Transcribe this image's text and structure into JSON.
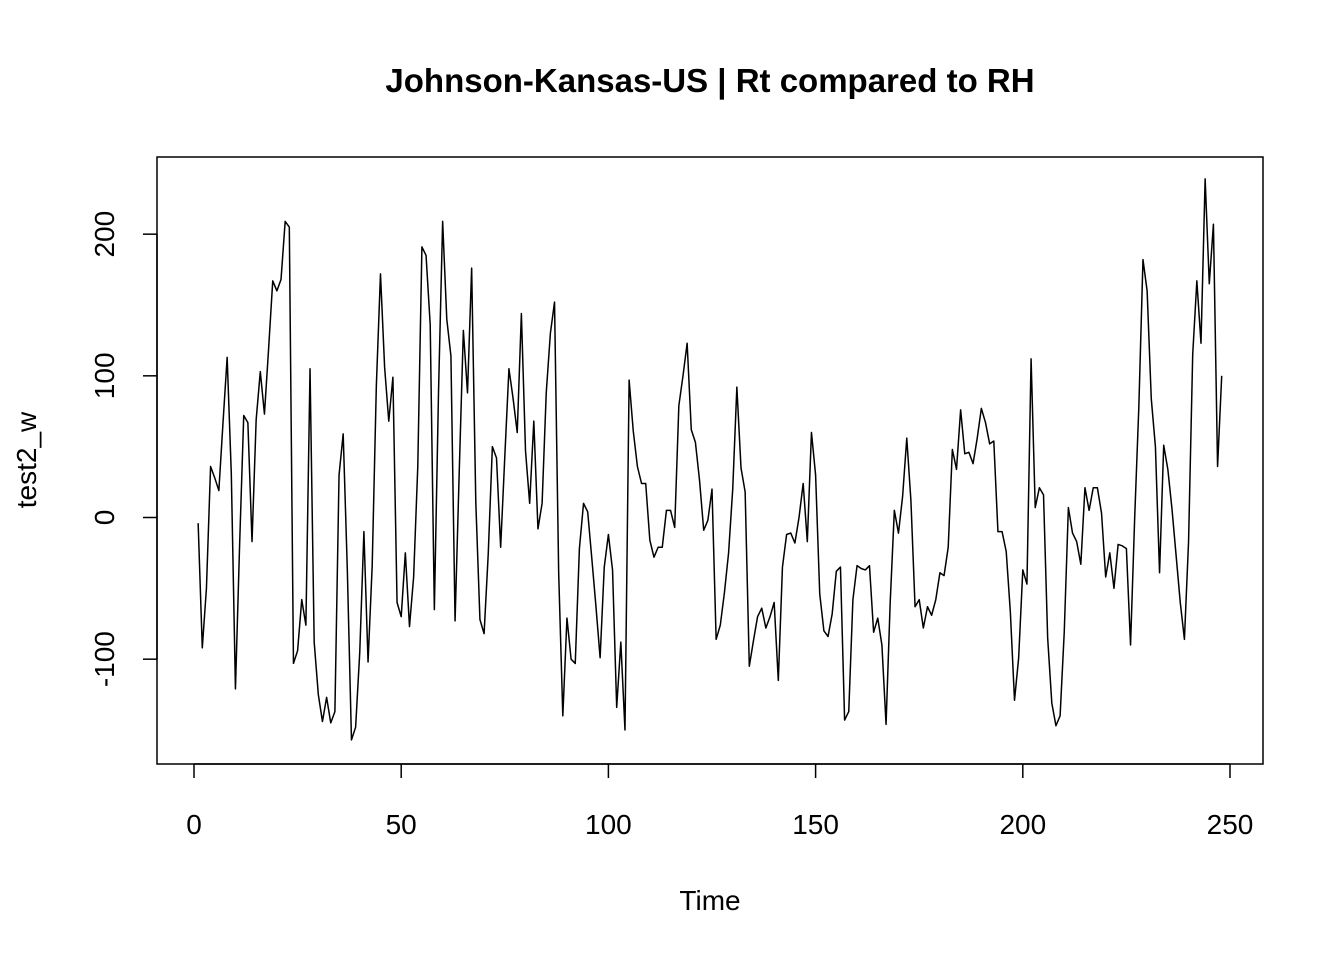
{
  "chart_data": {
    "type": "line",
    "title": "Johnson-Kansas-US | Rt compared to RH",
    "xlabel": "Time",
    "ylabel": "test2_w",
    "xlim": [
      1,
      248
    ],
    "ylim": [
      -157,
      238
    ],
    "xticks": [
      0,
      50,
      100,
      150,
      200,
      250
    ],
    "yticks": [
      -100,
      0,
      100,
      200
    ],
    "grid": false,
    "legend": "none",
    "line_color": "#000000",
    "x_start": 1,
    "x_step": 1,
    "values": [
      -4,
      -92,
      -50,
      36,
      28,
      19,
      67,
      113,
      31,
      -121,
      -20,
      72,
      67,
      -17,
      69,
      103,
      73,
      119,
      167,
      160,
      168,
      209,
      205,
      -103,
      -94,
      -58,
      -76,
      105,
      -88,
      -125,
      -144,
      -127,
      -145,
      -137,
      30,
      59,
      -37,
      -157,
      -148,
      -95,
      -10,
      -102,
      -34,
      93,
      172,
      106,
      68,
      99,
      -60,
      -70,
      -25,
      -77,
      -42,
      36,
      191,
      185,
      136,
      -65,
      88,
      209,
      140,
      114,
      -73,
      32,
      132,
      88,
      176,
      11,
      -72,
      -82,
      -26,
      50,
      42,
      -21,
      43,
      105,
      84,
      60,
      144,
      47,
      10,
      68,
      -8,
      10,
      88,
      130,
      152,
      -39,
      -140,
      -71,
      -100,
      -103,
      -22,
      10,
      4,
      -29,
      -63,
      -99,
      -35,
      -12,
      -37,
      -134,
      -88,
      -150,
      97,
      61,
      36,
      24,
      24,
      -16,
      -28,
      -21,
      -21,
      5,
      5,
      -7,
      79,
      100,
      123,
      62,
      53,
      26,
      -9,
      -2,
      20,
      -86,
      -76,
      -53,
      -25,
      20,
      92,
      35,
      18,
      -105,
      -87,
      -70,
      -64,
      -78,
      -70,
      -60,
      -115,
      -35,
      -12,
      -11,
      -18,
      0,
      24,
      -17,
      60,
      30,
      -54,
      -80,
      -84,
      -68,
      -38,
      -35,
      -143,
      -137,
      -58,
      -34,
      -36,
      -37,
      -34,
      -81,
      -71,
      -90,
      -146,
      -60,
      5,
      -11,
      15,
      56,
      12,
      -63,
      -58,
      -78,
      -63,
      -69,
      -58,
      -39,
      -41,
      -21,
      48,
      34,
      76,
      45,
      46,
      38,
      56,
      77,
      67,
      52,
      54,
      -10,
      -10,
      -24,
      -67,
      -129,
      -99,
      -37,
      -47,
      112,
      7,
      21,
      16,
      -85,
      -131,
      -147,
      -140,
      -81,
      7,
      -11,
      -17,
      -33,
      21,
      5,
      21,
      21,
      3,
      -42,
      -25,
      -50,
      -19,
      -20,
      -22,
      -90,
      0,
      78,
      182,
      160,
      84,
      50,
      -39,
      51,
      34,
      6,
      -27,
      -60,
      -86,
      -17,
      115,
      167,
      123,
      239,
      165,
      207,
      36,
      100
    ]
  }
}
